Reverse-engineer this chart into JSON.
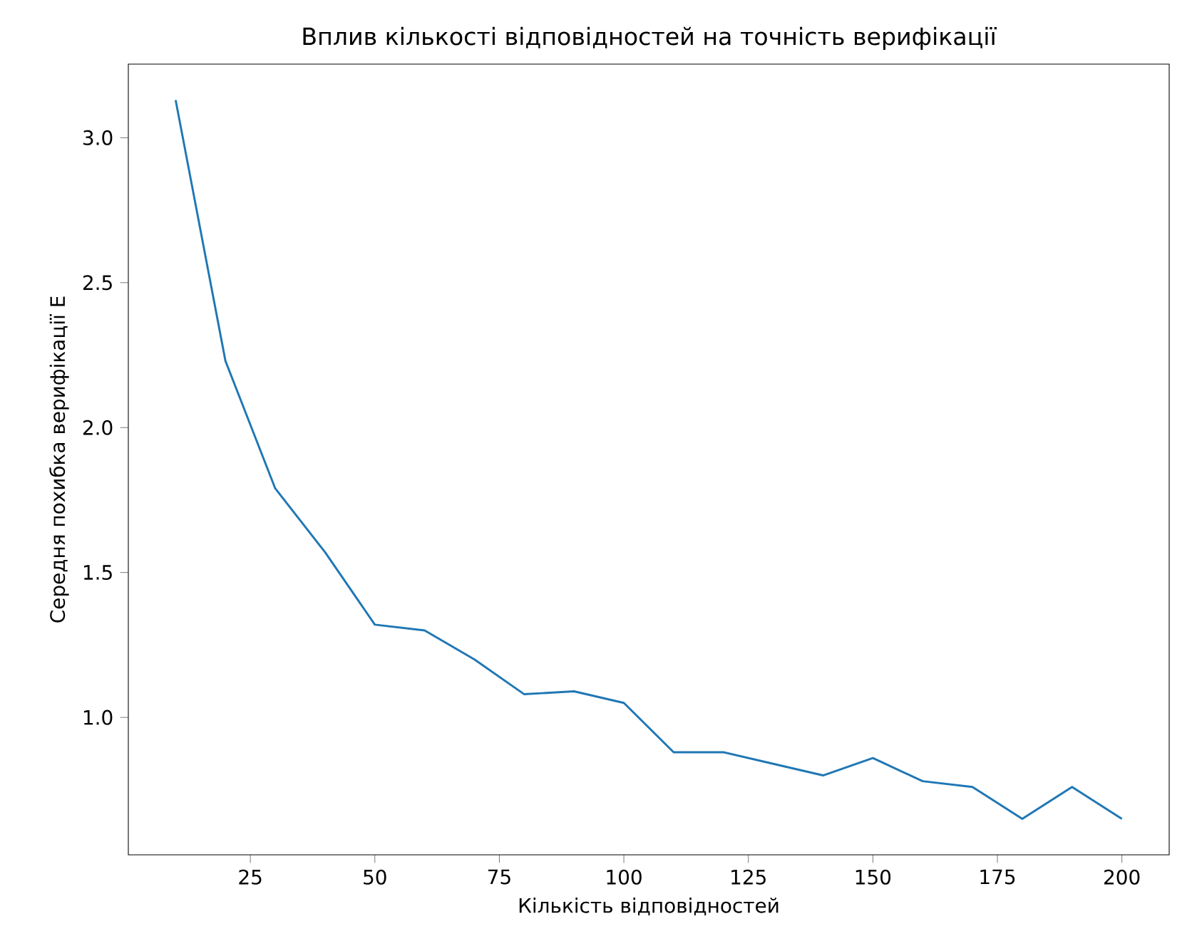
{
  "chart_data": {
    "type": "line",
    "title": "Вплив кількості відповідностей на точність верифікації",
    "xlabel": "Кількість відповідностей",
    "ylabel": "Середня похибка верифікації E",
    "x": [
      10,
      20,
      30,
      40,
      50,
      60,
      70,
      80,
      90,
      100,
      110,
      120,
      130,
      140,
      150,
      160,
      170,
      180,
      190,
      200
    ],
    "series": [
      {
        "color": "#1f77b4",
        "values": [
          3.13,
          2.23,
          1.79,
          1.57,
          1.32,
          1.3,
          1.2,
          1.08,
          1.09,
          1.05,
          0.88,
          0.88,
          0.84,
          0.8,
          0.86,
          0.78,
          0.76,
          0.65,
          0.76,
          0.65
        ]
      }
    ],
    "xlim": [
      0.5,
      209.5
    ],
    "ylim": [
      0.526,
      3.254
    ],
    "xticks": [
      25,
      50,
      75,
      100,
      125,
      150,
      175,
      200
    ],
    "yticks": [
      {
        "value": 1.0,
        "label": "1.0"
      },
      {
        "value": 1.5,
        "label": "1.5"
      },
      {
        "value": 2.0,
        "label": "2.0"
      },
      {
        "value": 2.5,
        "label": "2.5"
      },
      {
        "value": 3.0,
        "label": "3.0"
      }
    ],
    "grid": false,
    "marker": "none",
    "line_style": "solid"
  }
}
